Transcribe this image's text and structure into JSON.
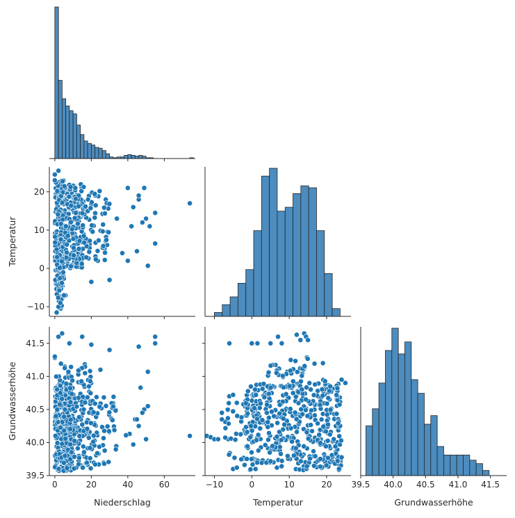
{
  "colors": {
    "accent": "#1f77b4",
    "hist_fill": "#4c8cbf",
    "axis": "#262626"
  },
  "chart_data": {
    "type": "pairplot-corner",
    "grid": false,
    "variables": [
      "Niederschlag",
      "Temperatur",
      "Grundwasserhöhe"
    ],
    "axes": {
      "Niederschlag": {
        "range": [
          -3,
          77
        ],
        "ticks": [
          0,
          20,
          40,
          60
        ],
        "tick_labels": [
          "0",
          "20",
          "40",
          "60"
        ]
      },
      "Temperatur": {
        "range": [
          -12.5,
          26.5
        ],
        "ticks": [
          -10,
          0,
          10,
          20
        ],
        "tick_labels": [
          "−10",
          "0",
          "10",
          "20"
        ]
      },
      "Grundwasserhöhe": {
        "range": [
          39.5,
          41.75
        ],
        "ticks": [
          39.5,
          40.0,
          40.5,
          41.0,
          41.5
        ],
        "tick_labels": [
          "39.5",
          "40.0",
          "40.5",
          "41.0",
          "41.5"
        ]
      }
    },
    "histograms": {
      "Niederschlag": {
        "bin_start": 0,
        "bin_width": 2.0,
        "counts": [
          190,
          98,
          75,
          66,
          60,
          56,
          42,
          30,
          22,
          19,
          17,
          14,
          13,
          10,
          6,
          2,
          1,
          2,
          2,
          4,
          5,
          4,
          3,
          4,
          3,
          1,
          1,
          0,
          0,
          0,
          0,
          0,
          0,
          0,
          0,
          0,
          0,
          1
        ]
      },
      "Temperatur": {
        "bin_start": -10.0,
        "bin_width": 2.1,
        "counts": [
          2,
          6,
          10,
          17,
          24,
          44,
          72,
          76,
          54,
          56,
          63,
          67,
          66,
          44,
          22,
          4
        ]
      },
      "Grundwasserhöhe": {
        "bin_start": 39.58,
        "bin_width": 0.1,
        "counts": [
          29,
          39,
          54,
          73,
          86,
          71,
          78,
          56,
          48,
          30,
          35,
          17,
          12,
          12,
          12,
          12,
          9,
          7,
          3
        ]
      }
    },
    "scatter": [
      {
        "x": "Niederschlag",
        "y": "Temperatur",
        "clusters": [
          {
            "x_range": [
              0,
              6
            ],
            "y_range": [
              -8,
              23
            ],
            "n": 160
          },
          {
            "x_range": [
              0,
              16
            ],
            "y_range": [
              0,
              22
            ],
            "n": 180
          },
          {
            "x_range": [
              6,
              30
            ],
            "y_range": [
              2,
              21
            ],
            "n": 110
          },
          {
            "x_range": [
              0,
              4
            ],
            "y_range": [
              -11,
              -2
            ],
            "n": 14
          }
        ],
        "points": [
          [
            74,
            17
          ],
          [
            55,
            14.5
          ],
          [
            55,
            6.5
          ],
          [
            51,
            0.7
          ],
          [
            49,
            21
          ],
          [
            50,
            13
          ],
          [
            52,
            11
          ],
          [
            48,
            12
          ],
          [
            46,
            18
          ],
          [
            45,
            4.5
          ],
          [
            40,
            2
          ],
          [
            37,
            4
          ],
          [
            43,
            16
          ],
          [
            42,
            11
          ],
          [
            40,
            21
          ],
          [
            46,
            19
          ],
          [
            34,
            13
          ],
          [
            30,
            -3
          ],
          [
            20,
            -3.5
          ],
          [
            2,
            25.5
          ],
          [
            0,
            24.5
          ],
          [
            0,
            23
          ],
          [
            2,
            -10
          ],
          [
            1,
            -11.5
          ],
          [
            3,
            -9
          ],
          [
            5,
            -7
          ]
        ]
      },
      {
        "x": "Niederschlag",
        "y": "Grundwasserhöhe",
        "clusters": [
          {
            "x_range": [
              0,
              10
            ],
            "y_range": [
              39.57,
              40.9
            ],
            "n": 240
          },
          {
            "x_range": [
              0,
              20
            ],
            "y_range": [
              39.6,
              41.2
            ],
            "n": 150
          },
          {
            "x_range": [
              8,
              34
            ],
            "y_range": [
              39.65,
              40.75
            ],
            "n": 110
          }
        ],
        "points": [
          [
            74,
            40.1
          ],
          [
            55,
            41.6
          ],
          [
            55,
            41.5
          ],
          [
            51,
            41.07
          ],
          [
            51,
            40.55
          ],
          [
            46,
            41.45
          ],
          [
            47,
            40.83
          ],
          [
            49,
            40.5
          ],
          [
            50,
            40.05
          ],
          [
            48,
            40.45
          ],
          [
            44,
            40.35
          ],
          [
            43,
            39.97
          ],
          [
            46,
            40.25
          ],
          [
            41,
            40.13
          ],
          [
            39,
            40.11
          ],
          [
            45,
            40.35
          ],
          [
            30,
            41.4
          ],
          [
            15,
            41.6
          ],
          [
            8,
            41.5
          ],
          [
            4,
            41.65
          ],
          [
            2,
            41.6
          ],
          [
            20,
            41.48
          ],
          [
            0,
            41.28
          ],
          [
            0,
            41.3
          ],
          [
            25,
            41.1
          ]
        ]
      },
      {
        "x": "Temperatur",
        "y": "Grundwasserhöhe",
        "clusters": [
          {
            "x_range": [
              -2,
              24
            ],
            "y_range": [
              39.58,
              40.9
            ],
            "n": 430
          },
          {
            "x_range": [
              4,
              20
            ],
            "y_range": [
              40.8,
              41.3
            ],
            "n": 45
          },
          {
            "x_range": [
              -8,
              2
            ],
            "y_range": [
              39.7,
              40.6
            ],
            "n": 35
          }
        ],
        "points": [
          [
            -12,
            40.1
          ],
          [
            -11,
            40.08
          ],
          [
            -10,
            40.05
          ],
          [
            -9,
            40.05
          ],
          [
            -8,
            40.35
          ],
          [
            -8,
            40.45
          ],
          [
            -6,
            40.7
          ],
          [
            -5,
            40.72
          ],
          [
            -4,
            40.6
          ],
          [
            -6,
            41.5
          ],
          [
            0,
            41.5
          ],
          [
            1.5,
            41.5
          ],
          [
            5,
            41.5
          ],
          [
            7,
            41.6
          ],
          [
            8,
            41.5
          ],
          [
            13,
            41.55
          ],
          [
            14,
            41.65
          ],
          [
            14.5,
            41.6
          ],
          [
            15,
            41.55
          ],
          [
            12,
            41.63
          ],
          [
            19,
            41.2
          ],
          [
            24,
            40.95
          ],
          [
            25,
            40.9
          ],
          [
            -5,
            39.6
          ],
          [
            -4,
            39.62
          ],
          [
            1,
            39.6
          ]
        ]
      }
    ]
  }
}
